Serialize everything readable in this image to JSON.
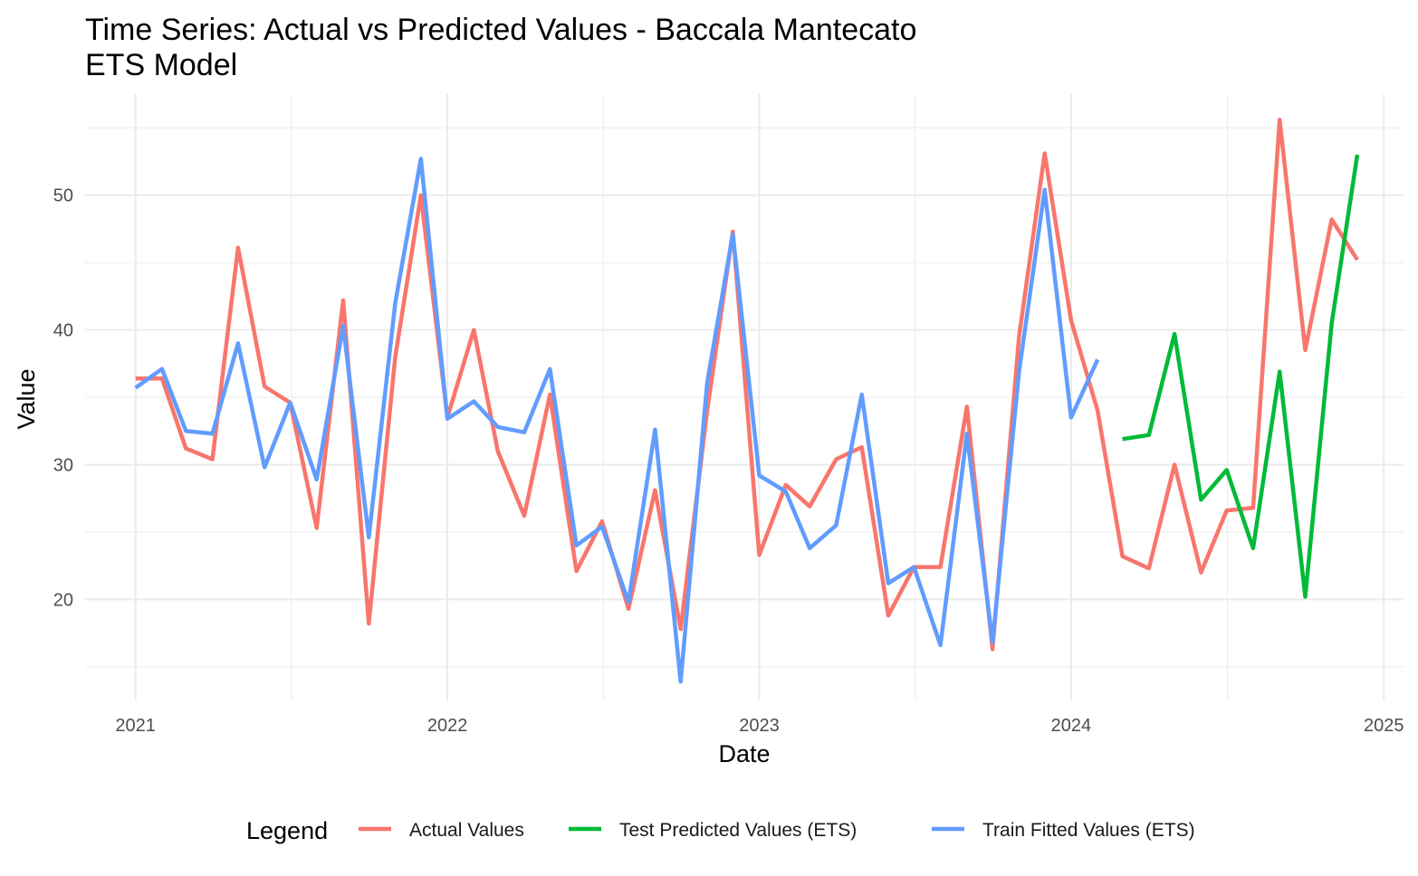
{
  "chart_data": {
    "type": "line",
    "title": "Time Series: Actual vs Predicted Values - Baccala Mantecato",
    "subtitle": "ETS Model",
    "xlabel": "Date",
    "ylabel": "Value",
    "x_ticks": [
      "2021",
      "2022",
      "2023",
      "2024",
      "2025"
    ],
    "y_ticks": [
      20,
      30,
      40,
      50
    ],
    "xlim": [
      "2020-11-03",
      "2025-01-24"
    ],
    "ylim": [
      12.5,
      57.5
    ],
    "grid": true,
    "legend_title": "Legend",
    "legend_position": "bottom",
    "series": [
      {
        "name": "Actual Values",
        "color": "#F8766D",
        "points": [
          [
            "2021-01-01",
            36.4
          ],
          [
            "2021-02-01",
            36.4
          ],
          [
            "2021-03-01",
            31.2
          ],
          [
            "2021-04-01",
            30.4
          ],
          [
            "2021-05-01",
            46.1
          ],
          [
            "2021-06-01",
            35.8
          ],
          [
            "2021-07-01",
            34.6
          ],
          [
            "2021-08-01",
            25.3
          ],
          [
            "2021-09-01",
            42.2
          ],
          [
            "2021-10-01",
            18.2
          ],
          [
            "2021-11-01",
            38.0
          ],
          [
            "2021-12-01",
            50.0
          ],
          [
            "2022-01-01",
            33.5
          ],
          [
            "2022-02-01",
            40.0
          ],
          [
            "2022-03-01",
            31.0
          ],
          [
            "2022-04-01",
            26.2
          ],
          [
            "2022-05-01",
            35.2
          ],
          [
            "2022-06-01",
            22.1
          ],
          [
            "2022-07-01",
            25.8
          ],
          [
            "2022-08-01",
            19.3
          ],
          [
            "2022-09-01",
            28.1
          ],
          [
            "2022-10-01",
            17.8
          ],
          [
            "2022-11-01",
            34.0
          ],
          [
            "2022-12-01",
            47.3
          ],
          [
            "2023-01-01",
            23.3
          ],
          [
            "2023-02-01",
            28.5
          ],
          [
            "2023-03-01",
            26.9
          ],
          [
            "2023-04-01",
            30.4
          ],
          [
            "2023-05-01",
            31.3
          ],
          [
            "2023-06-01",
            18.8
          ],
          [
            "2023-07-01",
            22.4
          ],
          [
            "2023-08-01",
            22.4
          ],
          [
            "2023-09-01",
            34.3
          ],
          [
            "2023-10-01",
            16.3
          ],
          [
            "2023-11-01",
            39.5
          ],
          [
            "2023-12-01",
            53.1
          ],
          [
            "2024-01-01",
            40.7
          ],
          [
            "2024-02-01",
            34.0
          ],
          [
            "2024-03-01",
            23.2
          ],
          [
            "2024-04-01",
            22.3
          ],
          [
            "2024-05-01",
            30.0
          ],
          [
            "2024-06-01",
            22.0
          ],
          [
            "2024-07-01",
            26.6
          ],
          [
            "2024-08-01",
            26.8
          ],
          [
            "2024-09-01",
            55.6
          ],
          [
            "2024-10-01",
            38.5
          ],
          [
            "2024-11-01",
            48.2
          ],
          [
            "2024-12-01",
            45.2
          ]
        ]
      },
      {
        "name": "Test Predicted Values (ETS)",
        "color": "#00BA38",
        "points": [
          [
            "2024-03-01",
            31.9
          ],
          [
            "2024-04-01",
            32.2
          ],
          [
            "2024-05-01",
            39.7
          ],
          [
            "2024-06-01",
            27.4
          ],
          [
            "2024-07-01",
            29.6
          ],
          [
            "2024-08-01",
            23.8
          ],
          [
            "2024-09-01",
            36.9
          ],
          [
            "2024-10-01",
            20.2
          ],
          [
            "2024-11-01",
            40.5
          ],
          [
            "2024-12-01",
            53.0
          ]
        ]
      },
      {
        "name": "Train Fitted Values (ETS)",
        "color": "#619CFF",
        "points": [
          [
            "2021-01-01",
            35.7
          ],
          [
            "2021-02-01",
            37.1
          ],
          [
            "2021-03-01",
            32.5
          ],
          [
            "2021-04-01",
            32.3
          ],
          [
            "2021-05-01",
            39.0
          ],
          [
            "2021-06-01",
            29.8
          ],
          [
            "2021-07-01",
            34.6
          ],
          [
            "2021-08-01",
            28.9
          ],
          [
            "2021-09-01",
            40.3
          ],
          [
            "2021-10-01",
            24.6
          ],
          [
            "2021-11-01",
            42.0
          ],
          [
            "2021-12-01",
            52.7
          ],
          [
            "2022-01-01",
            33.4
          ],
          [
            "2022-02-01",
            34.7
          ],
          [
            "2022-03-01",
            32.8
          ],
          [
            "2022-04-01",
            32.4
          ],
          [
            "2022-05-01",
            37.1
          ],
          [
            "2022-06-01",
            24.0
          ],
          [
            "2022-07-01",
            25.4
          ],
          [
            "2022-08-01",
            19.8
          ],
          [
            "2022-09-01",
            32.6
          ],
          [
            "2022-10-01",
            13.9
          ],
          [
            "2022-11-01",
            36.1
          ],
          [
            "2022-12-01",
            47.1
          ],
          [
            "2023-01-01",
            29.2
          ],
          [
            "2023-02-01",
            28.0
          ],
          [
            "2023-03-01",
            23.8
          ],
          [
            "2023-04-01",
            25.5
          ],
          [
            "2023-05-01",
            35.2
          ],
          [
            "2023-06-01",
            21.2
          ],
          [
            "2023-07-01",
            22.4
          ],
          [
            "2023-08-01",
            16.6
          ],
          [
            "2023-09-01",
            32.3
          ],
          [
            "2023-10-01",
            16.8
          ],
          [
            "2023-11-01",
            36.9
          ],
          [
            "2023-12-01",
            50.4
          ],
          [
            "2024-01-01",
            33.5
          ],
          [
            "2024-02-01",
            37.8
          ]
        ]
      }
    ]
  }
}
